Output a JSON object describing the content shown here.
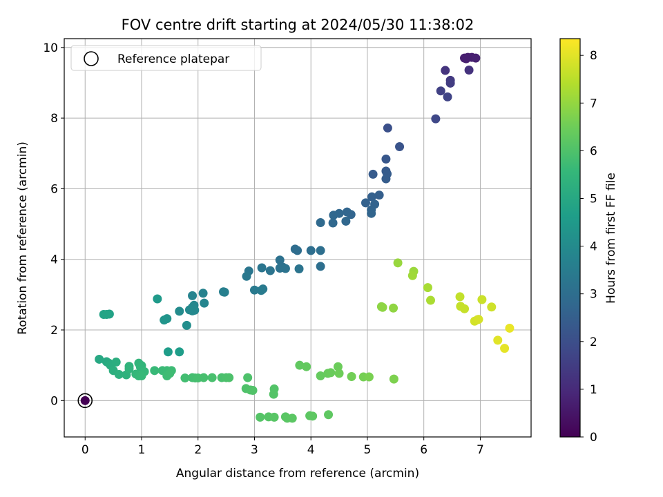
{
  "chart_data": {
    "type": "scatter",
    "title": "FOV centre drift starting at 2024/05/30 11:38:02",
    "xlabel": "Angular distance from reference (arcmin)",
    "ylabel": "Rotation from reference (arcmin)",
    "xlim": [
      -0.37,
      7.9
    ],
    "ylim": [
      -1.03,
      10.25
    ],
    "xticks": [
      0,
      1,
      2,
      3,
      4,
      5,
      6,
      7
    ],
    "yticks": [
      0,
      2,
      4,
      6,
      8,
      10
    ],
    "grid": true,
    "legend": {
      "location": "upper-left",
      "entries": [
        "Reference platepar"
      ]
    },
    "reference_point": {
      "x": 0,
      "y": 0,
      "label": "Reference platepar"
    },
    "colorbar": {
      "label": "Hours from first FF file",
      "range": [
        0,
        8.35
      ],
      "ticks": [
        0,
        1,
        2,
        3,
        4,
        5,
        6,
        7,
        8
      ],
      "colormap": "viridis"
    },
    "points": [
      {
        "x": 0.0,
        "y": 0.0,
        "c": 0.0
      },
      {
        "x": 6.72,
        "y": 9.7,
        "c": 0.7
      },
      {
        "x": 6.78,
        "y": 9.72,
        "c": 0.7
      },
      {
        "x": 6.85,
        "y": 9.72,
        "c": 0.72
      },
      {
        "x": 6.92,
        "y": 9.7,
        "c": 0.75
      },
      {
        "x": 6.75,
        "y": 9.68,
        "c": 0.72
      },
      {
        "x": 6.8,
        "y": 9.36,
        "c": 1.2
      },
      {
        "x": 6.38,
        "y": 9.35,
        "c": 1.25
      },
      {
        "x": 6.47,
        "y": 9.07,
        "c": 1.4
      },
      {
        "x": 6.47,
        "y": 8.99,
        "c": 1.5
      },
      {
        "x": 6.3,
        "y": 8.77,
        "c": 1.6
      },
      {
        "x": 6.42,
        "y": 8.6,
        "c": 1.7
      },
      {
        "x": 6.21,
        "y": 7.98,
        "c": 1.8
      },
      {
        "x": 5.36,
        "y": 7.72,
        "c": 2.05
      },
      {
        "x": 5.57,
        "y": 7.19,
        "c": 2.15
      },
      {
        "x": 5.33,
        "y": 6.84,
        "c": 2.25
      },
      {
        "x": 5.33,
        "y": 6.5,
        "c": 2.35
      },
      {
        "x": 5.1,
        "y": 6.41,
        "c": 2.38
      },
      {
        "x": 5.35,
        "y": 6.42,
        "c": 2.4
      },
      {
        "x": 5.33,
        "y": 6.28,
        "c": 2.45
      },
      {
        "x": 5.21,
        "y": 5.82,
        "c": 2.5
      },
      {
        "x": 5.08,
        "y": 5.77,
        "c": 2.55
      },
      {
        "x": 4.97,
        "y": 5.6,
        "c": 2.6
      },
      {
        "x": 5.13,
        "y": 5.56,
        "c": 2.62
      },
      {
        "x": 5.07,
        "y": 5.4,
        "c": 2.65
      },
      {
        "x": 5.07,
        "y": 5.3,
        "c": 2.68
      },
      {
        "x": 4.71,
        "y": 5.27,
        "c": 2.7
      },
      {
        "x": 4.64,
        "y": 5.34,
        "c": 2.72
      },
      {
        "x": 4.5,
        "y": 5.3,
        "c": 2.75
      },
      {
        "x": 4.4,
        "y": 5.25,
        "c": 2.78
      },
      {
        "x": 4.62,
        "y": 5.08,
        "c": 2.8
      },
      {
        "x": 4.39,
        "y": 5.03,
        "c": 2.82
      },
      {
        "x": 4.17,
        "y": 5.04,
        "c": 2.85
      },
      {
        "x": 3.72,
        "y": 4.29,
        "c": 2.95
      },
      {
        "x": 3.76,
        "y": 4.25,
        "c": 2.97
      },
      {
        "x": 4.0,
        "y": 4.25,
        "c": 3.0
      },
      {
        "x": 4.17,
        "y": 4.25,
        "c": 3.02
      },
      {
        "x": 4.17,
        "y": 3.8,
        "c": 3.05
      },
      {
        "x": 3.45,
        "y": 3.98,
        "c": 3.1
      },
      {
        "x": 3.5,
        "y": 3.78,
        "c": 3.12
      },
      {
        "x": 3.45,
        "y": 3.75,
        "c": 3.15
      },
      {
        "x": 3.55,
        "y": 3.74,
        "c": 3.17
      },
      {
        "x": 3.79,
        "y": 3.73,
        "c": 3.2
      },
      {
        "x": 3.28,
        "y": 3.68,
        "c": 3.22
      },
      {
        "x": 3.13,
        "y": 3.76,
        "c": 3.25
      },
      {
        "x": 2.9,
        "y": 3.67,
        "c": 3.3
      },
      {
        "x": 2.86,
        "y": 3.52,
        "c": 3.35
      },
      {
        "x": 3.15,
        "y": 3.16,
        "c": 3.4
      },
      {
        "x": 3.0,
        "y": 3.13,
        "c": 3.42
      },
      {
        "x": 3.12,
        "y": 3.12,
        "c": 3.45
      },
      {
        "x": 2.45,
        "y": 3.08,
        "c": 3.6
      },
      {
        "x": 2.47,
        "y": 3.07,
        "c": 3.62
      },
      {
        "x": 2.09,
        "y": 3.04,
        "c": 3.7
      },
      {
        "x": 1.9,
        "y": 2.97,
        "c": 3.75
      },
      {
        "x": 2.11,
        "y": 2.76,
        "c": 3.8
      },
      {
        "x": 1.93,
        "y": 2.7,
        "c": 3.85
      },
      {
        "x": 1.9,
        "y": 2.64,
        "c": 3.88
      },
      {
        "x": 1.94,
        "y": 2.56,
        "c": 3.9
      },
      {
        "x": 1.9,
        "y": 2.54,
        "c": 3.92
      },
      {
        "x": 1.85,
        "y": 2.57,
        "c": 3.95
      },
      {
        "x": 1.67,
        "y": 2.53,
        "c": 4.0
      },
      {
        "x": 1.8,
        "y": 2.13,
        "c": 4.1
      },
      {
        "x": 1.45,
        "y": 2.32,
        "c": 4.3
      },
      {
        "x": 1.4,
        "y": 2.28,
        "c": 4.35
      },
      {
        "x": 1.28,
        "y": 2.88,
        "c": 4.5
      },
      {
        "x": 1.47,
        "y": 1.38,
        "c": 4.6
      },
      {
        "x": 1.67,
        "y": 1.38,
        "c": 4.62
      },
      {
        "x": 0.43,
        "y": 2.45,
        "c": 4.8
      },
      {
        "x": 0.33,
        "y": 2.44,
        "c": 4.82
      },
      {
        "x": 0.38,
        "y": 2.44,
        "c": 4.85
      },
      {
        "x": 0.25,
        "y": 1.17,
        "c": 5.0
      },
      {
        "x": 0.38,
        "y": 1.1,
        "c": 5.05
      },
      {
        "x": 0.42,
        "y": 1.06,
        "c": 5.1
      },
      {
        "x": 0.45,
        "y": 1.0,
        "c": 5.15
      },
      {
        "x": 0.55,
        "y": 1.09,
        "c": 5.2
      },
      {
        "x": 0.5,
        "y": 0.85,
        "c": 5.25
      },
      {
        "x": 0.6,
        "y": 0.74,
        "c": 5.3
      },
      {
        "x": 0.73,
        "y": 0.73,
        "c": 5.35
      },
      {
        "x": 0.78,
        "y": 0.97,
        "c": 5.4
      },
      {
        "x": 0.78,
        "y": 0.9,
        "c": 5.42
      },
      {
        "x": 0.95,
        "y": 1.06,
        "c": 5.45
      },
      {
        "x": 1.0,
        "y": 0.99,
        "c": 5.48
      },
      {
        "x": 0.98,
        "y": 0.95,
        "c": 5.5
      },
      {
        "x": 0.9,
        "y": 0.75,
        "c": 5.52
      },
      {
        "x": 0.95,
        "y": 0.7,
        "c": 5.55
      },
      {
        "x": 1.05,
        "y": 0.82,
        "c": 5.57
      },
      {
        "x": 1.0,
        "y": 0.7,
        "c": 5.6
      },
      {
        "x": 1.23,
        "y": 0.85,
        "c": 5.62
      },
      {
        "x": 1.37,
        "y": 0.85,
        "c": 5.65
      },
      {
        "x": 1.45,
        "y": 0.85,
        "c": 5.67
      },
      {
        "x": 1.53,
        "y": 0.85,
        "c": 5.7
      },
      {
        "x": 1.45,
        "y": 0.7,
        "c": 5.72
      },
      {
        "x": 1.5,
        "y": 0.77,
        "c": 5.74
      },
      {
        "x": 1.77,
        "y": 0.64,
        "c": 5.8
      },
      {
        "x": 1.9,
        "y": 0.65,
        "c": 5.82
      },
      {
        "x": 1.95,
        "y": 0.64,
        "c": 5.84
      },
      {
        "x": 2.0,
        "y": 0.64,
        "c": 5.86
      },
      {
        "x": 2.1,
        "y": 0.65,
        "c": 5.88
      },
      {
        "x": 2.25,
        "y": 0.65,
        "c": 5.9
      },
      {
        "x": 2.42,
        "y": 0.65,
        "c": 5.92
      },
      {
        "x": 2.5,
        "y": 0.65,
        "c": 5.94
      },
      {
        "x": 2.55,
        "y": 0.65,
        "c": 5.96
      },
      {
        "x": 2.88,
        "y": 0.65,
        "c": 5.98
      },
      {
        "x": 2.85,
        "y": 0.34,
        "c": 6.0
      },
      {
        "x": 2.93,
        "y": 0.3,
        "c": 6.02
      },
      {
        "x": 2.97,
        "y": 0.29,
        "c": 6.04
      },
      {
        "x": 3.35,
        "y": 0.33,
        "c": 6.06
      },
      {
        "x": 3.34,
        "y": 0.18,
        "c": 6.08
      },
      {
        "x": 3.1,
        "y": -0.47,
        "c": 6.1
      },
      {
        "x": 3.25,
        "y": -0.46,
        "c": 6.12
      },
      {
        "x": 3.35,
        "y": -0.47,
        "c": 6.14
      },
      {
        "x": 3.55,
        "y": -0.46,
        "c": 6.16
      },
      {
        "x": 3.58,
        "y": -0.5,
        "c": 6.18
      },
      {
        "x": 3.67,
        "y": -0.5,
        "c": 6.2
      },
      {
        "x": 3.98,
        "y": -0.43,
        "c": 6.22
      },
      {
        "x": 4.03,
        "y": -0.44,
        "c": 6.24
      },
      {
        "x": 4.31,
        "y": -0.4,
        "c": 6.26
      },
      {
        "x": 3.8,
        "y": 1.0,
        "c": 6.3
      },
      {
        "x": 3.92,
        "y": 0.96,
        "c": 6.33
      },
      {
        "x": 4.17,
        "y": 0.7,
        "c": 6.36
      },
      {
        "x": 4.3,
        "y": 0.77,
        "c": 6.4
      },
      {
        "x": 4.35,
        "y": 0.79,
        "c": 6.43
      },
      {
        "x": 4.48,
        "y": 0.96,
        "c": 6.46
      },
      {
        "x": 4.5,
        "y": 0.77,
        "c": 6.5
      },
      {
        "x": 4.72,
        "y": 0.68,
        "c": 6.55
      },
      {
        "x": 4.93,
        "y": 0.67,
        "c": 6.6
      },
      {
        "x": 5.03,
        "y": 0.67,
        "c": 6.65
      },
      {
        "x": 5.47,
        "y": 0.61,
        "c": 6.7
      },
      {
        "x": 5.25,
        "y": 2.66,
        "c": 6.9
      },
      {
        "x": 5.27,
        "y": 2.64,
        "c": 6.92
      },
      {
        "x": 5.46,
        "y": 2.62,
        "c": 6.95
      },
      {
        "x": 5.54,
        "y": 3.9,
        "c": 7.05
      },
      {
        "x": 5.82,
        "y": 3.66,
        "c": 7.1
      },
      {
        "x": 5.8,
        "y": 3.54,
        "c": 7.15
      },
      {
        "x": 6.07,
        "y": 3.2,
        "c": 7.25
      },
      {
        "x": 6.12,
        "y": 2.84,
        "c": 7.3
      },
      {
        "x": 6.64,
        "y": 2.94,
        "c": 7.6
      },
      {
        "x": 6.65,
        "y": 2.67,
        "c": 7.62
      },
      {
        "x": 6.72,
        "y": 2.6,
        "c": 7.65
      },
      {
        "x": 7.03,
        "y": 2.86,
        "c": 7.7
      },
      {
        "x": 7.2,
        "y": 2.65,
        "c": 7.75
      },
      {
        "x": 6.9,
        "y": 2.25,
        "c": 7.8
      },
      {
        "x": 6.95,
        "y": 2.29,
        "c": 7.82
      },
      {
        "x": 6.97,
        "y": 2.3,
        "c": 7.85
      },
      {
        "x": 7.31,
        "y": 1.71,
        "c": 8.0
      },
      {
        "x": 7.43,
        "y": 1.48,
        "c": 8.05
      },
      {
        "x": 7.52,
        "y": 2.05,
        "c": 8.1
      }
    ]
  }
}
